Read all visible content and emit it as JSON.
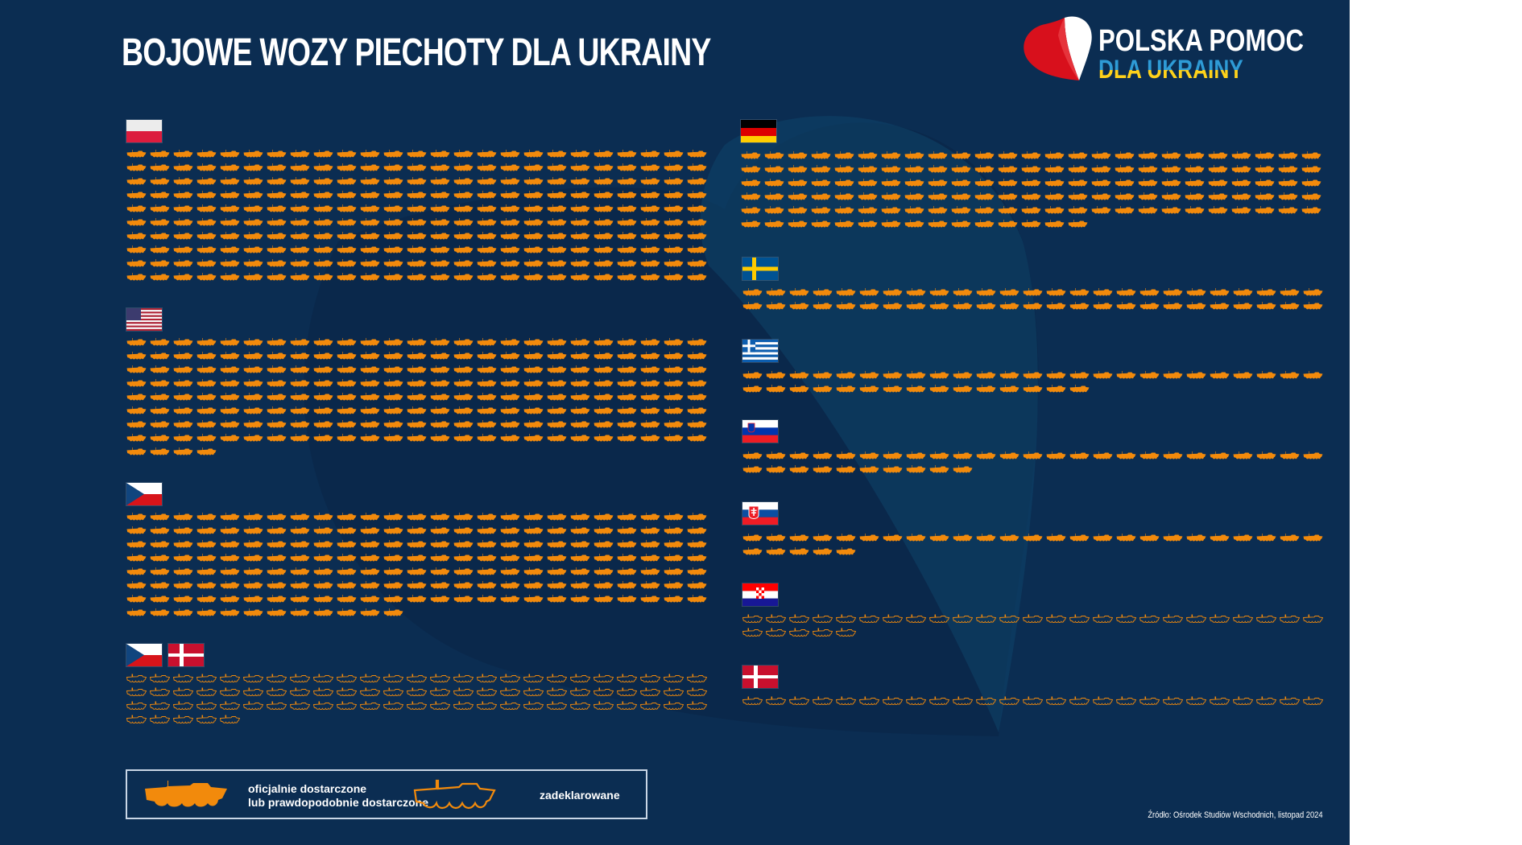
{
  "title": "BOJOWE WOZY PIECHOTY DLA UKRAINY",
  "logo": {
    "line1": "POLSKA POMOC",
    "line2": "DLA UKRAINY"
  },
  "colors": {
    "background": "#0b2d52",
    "vehicle": "#f28a0c",
    "white": "#ffffff",
    "logo_blue": "#2e9bd6",
    "logo_yellow": "#ffd21a",
    "logo_red": "#d8101c"
  },
  "icons_per_row": 25,
  "chart_data": {
    "type": "pictogram",
    "title": "BOJOWE WOZY PIECHOTY DLA UKRAINY",
    "unit": "1 icon = 1 infantry fighting vehicle",
    "legend": [
      {
        "key": "delivered",
        "label": "oficjalnie dostarczone lub prawdopodobnie dostarczone",
        "style": "filled"
      },
      {
        "key": "declared",
        "label": "zadeklarowane",
        "style": "outline"
      }
    ],
    "series": [
      {
        "country": "Polska",
        "flags": [
          "poland"
        ],
        "status": "delivered",
        "value": 250
      },
      {
        "country": "USA",
        "flags": [
          "usa"
        ],
        "status": "delivered",
        "value": 204
      },
      {
        "country": "Czechy",
        "flags": [
          "czechia"
        ],
        "status": "delivered",
        "value": 187
      },
      {
        "country": "Czechy i Dania",
        "flags": [
          "czechia",
          "denmark"
        ],
        "status": "declared",
        "value": 80
      },
      {
        "country": "Niemcy",
        "flags": [
          "germany"
        ],
        "status": "delivered",
        "value": 140
      },
      {
        "country": "Szwecja",
        "flags": [
          "sweden"
        ],
        "status": "delivered",
        "value": 50
      },
      {
        "country": "Grecja",
        "flags": [
          "greece"
        ],
        "status": "delivered",
        "value": 40
      },
      {
        "country": "Słowenia",
        "flags": [
          "slovenia"
        ],
        "status": "delivered",
        "value": 35
      },
      {
        "country": "Słowacja",
        "flags": [
          "slovakia"
        ],
        "status": "delivered",
        "value": 30
      },
      {
        "country": "Chorwacja",
        "flags": [
          "croatia"
        ],
        "status": "declared",
        "value": 30
      },
      {
        "country": "Dania",
        "flags": [
          "denmark"
        ],
        "status": "declared",
        "value": 25
      }
    ]
  },
  "legend": {
    "delivered_line1": "oficjalnie dostarczone",
    "delivered_line2": "lub prawdopodobnie dostarczone",
    "declared": "zadeklarowane"
  },
  "source": "Źródło: Ośrodek Studiów Wschodnich, listopad 2024"
}
